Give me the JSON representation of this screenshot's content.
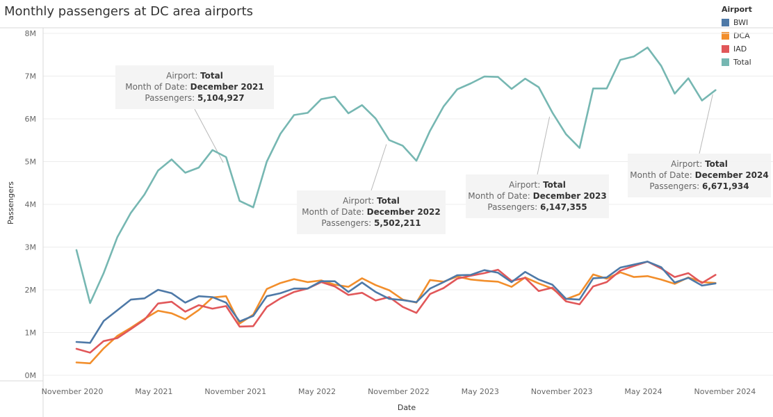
{
  "chart_data": {
    "type": "line",
    "title": "Monthly passengers at DC area airports",
    "xlabel": "Date",
    "ylabel": "Passengers",
    "ylim": [
      0,
      8000000
    ],
    "yticks": [
      "0M",
      "1M",
      "2M",
      "3M",
      "4M",
      "5M",
      "6M",
      "7M",
      "8M"
    ],
    "xticks": [
      {
        "label": "November 2020",
        "index": 0
      },
      {
        "label": "May 2021",
        "index": 6
      },
      {
        "label": "November 2021",
        "index": 12
      },
      {
        "label": "May 2022",
        "index": 18
      },
      {
        "label": "November 2022",
        "index": 24
      },
      {
        "label": "May 2023",
        "index": 30
      },
      {
        "label": "November 2023",
        "index": 36
      },
      {
        "label": "May 2024",
        "index": 42
      },
      {
        "label": "November 2024",
        "index": 48
      }
    ],
    "x_start": "November 2020",
    "x_end": "December 2024",
    "legend": {
      "title": "Airport",
      "position": "top-right"
    },
    "series": [
      {
        "name": "BWI",
        "color": "#4e79a7",
        "values": [
          780000,
          760000,
          1270000,
          1520000,
          1770000,
          1800000,
          2000000,
          1920000,
          1700000,
          1850000,
          1830000,
          1700000,
          1260000,
          1390000,
          1850000,
          1920000,
          2030000,
          2030000,
          2200000,
          2200000,
          1950000,
          2170000,
          1950000,
          1790000,
          1760000,
          1710000,
          2030000,
          2180000,
          2340000,
          2350000,
          2460000,
          2400000,
          2180000,
          2420000,
          2240000,
          2120000,
          1790000,
          1770000,
          2270000,
          2290000,
          2520000,
          2590000,
          2660000,
          2530000,
          2170000,
          2280000,
          2100000,
          2150000
        ]
      },
      {
        "name": "DCA",
        "color": "#f28e2b",
        "values": [
          300000,
          280000,
          630000,
          920000,
          1110000,
          1320000,
          1510000,
          1450000,
          1310000,
          1530000,
          1820000,
          1850000,
          1210000,
          1420000,
          2020000,
          2160000,
          2250000,
          2180000,
          2220000,
          2120000,
          2070000,
          2270000,
          2110000,
          1990000,
          1770000,
          1700000,
          2230000,
          2190000,
          2310000,
          2240000,
          2210000,
          2190000,
          2070000,
          2290000,
          2150000,
          2030000,
          1780000,
          1900000,
          2360000,
          2260000,
          2410000,
          2300000,
          2320000,
          2240000,
          2140000,
          2290000,
          2180000,
          2160000
        ]
      },
      {
        "name": "IAD",
        "color": "#e15759",
        "values": [
          620000,
          530000,
          800000,
          870000,
          1080000,
          1300000,
          1680000,
          1720000,
          1490000,
          1640000,
          1560000,
          1620000,
          1140000,
          1150000,
          1600000,
          1800000,
          1950000,
          2030000,
          2180000,
          2080000,
          1880000,
          1930000,
          1750000,
          1830000,
          1600000,
          1460000,
          1900000,
          2040000,
          2260000,
          2330000,
          2390000,
          2470000,
          2210000,
          2280000,
          1970000,
          2050000,
          1730000,
          1660000,
          2080000,
          2180000,
          2450000,
          2560000,
          2660000,
          2500000,
          2300000,
          2390000,
          2160000,
          2350000
        ]
      },
      {
        "name": "Total",
        "color": "#76b7b2",
        "values": [
          2930000,
          1690000,
          2390000,
          3230000,
          3800000,
          4230000,
          4790000,
          5050000,
          4740000,
          4860000,
          5270000,
          5104927,
          4080000,
          3930000,
          5000000,
          5650000,
          6090000,
          6140000,
          6460000,
          6520000,
          6130000,
          6320000,
          6010000,
          5502211,
          5370000,
          5020000,
          5720000,
          6290000,
          6690000,
          6830000,
          6990000,
          6980000,
          6700000,
          6940000,
          6740000,
          6147355,
          5640000,
          5320000,
          6710000,
          6710000,
          7380000,
          7460000,
          7670000,
          7240000,
          6590000,
          6950000,
          6430000,
          6671934
        ]
      }
    ],
    "annotations": [
      {
        "airport_label": "Airport:",
        "airport": "Total",
        "month_label": "Month of Date:",
        "month": "December 2021",
        "pass_label": "Passengers:",
        "passengers": "5,104,927",
        "point_index": 11,
        "series": "Total"
      },
      {
        "airport_label": "Airport:",
        "airport": "Total",
        "month_label": "Month of Date:",
        "month": "December 2022",
        "pass_label": "Passengers:",
        "passengers": "5,502,211",
        "point_index": 23,
        "series": "Total"
      },
      {
        "airport_label": "Airport:",
        "airport": "Total",
        "month_label": "Month of Date:",
        "month": "December 2023",
        "pass_label": "Passengers:",
        "passengers": "6,147,355",
        "point_index": 35,
        "series": "Total"
      },
      {
        "airport_label": "Airport:",
        "airport": "Total",
        "month_label": "Month of Date:",
        "month": "December 2024",
        "pass_label": "Passengers:",
        "passengers": "6,671,934",
        "point_index": 47,
        "series": "Total"
      }
    ]
  }
}
